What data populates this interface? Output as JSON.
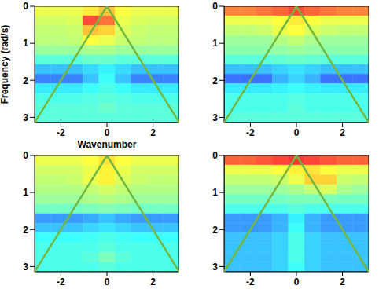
{
  "chart_data": [
    {
      "type": "heatmap",
      "x_label": "Wavenumber",
      "y_label": "Frequency (rad/s)",
      "xlim": [
        -3.14,
        3.14
      ],
      "xticks": [
        -2,
        0,
        2
      ],
      "ylim": [
        0,
        3.14
      ],
      "yticks": [
        0,
        1,
        2,
        3
      ],
      "x_edges": [
        -3.14,
        -2.442,
        -1.744,
        -1.047,
        -0.349,
        0.349,
        1.047,
        1.744,
        2.442,
        3.14
      ],
      "y_edges": [
        0,
        0.26,
        0.52,
        0.79,
        1.05,
        1.31,
        1.57,
        1.83,
        2.09,
        2.36,
        2.62,
        2.88,
        3.14
      ],
      "zlim": [
        0,
        1
      ],
      "z": [
        [
          0.6,
          0.6,
          0.6,
          0.65,
          0.7,
          0.62,
          0.6,
          0.6,
          0.6
        ],
        [
          0.57,
          0.57,
          0.58,
          0.85,
          0.8,
          0.6,
          0.58,
          0.57,
          0.57
        ],
        [
          0.55,
          0.55,
          0.56,
          0.7,
          0.68,
          0.58,
          0.56,
          0.55,
          0.55
        ],
        [
          0.54,
          0.54,
          0.55,
          0.62,
          0.6,
          0.56,
          0.55,
          0.54,
          0.54
        ],
        [
          0.5,
          0.5,
          0.5,
          0.52,
          0.52,
          0.5,
          0.5,
          0.5,
          0.5
        ],
        [
          0.42,
          0.42,
          0.42,
          0.44,
          0.44,
          0.42,
          0.42,
          0.42,
          0.42
        ],
        [
          0.3,
          0.3,
          0.3,
          0.33,
          0.36,
          0.33,
          0.3,
          0.3,
          0.3
        ],
        [
          0.22,
          0.22,
          0.22,
          0.3,
          0.38,
          0.3,
          0.22,
          0.22,
          0.22
        ],
        [
          0.35,
          0.35,
          0.35,
          0.38,
          0.4,
          0.38,
          0.35,
          0.35,
          0.35
        ],
        [
          0.4,
          0.4,
          0.4,
          0.41,
          0.42,
          0.41,
          0.4,
          0.4,
          0.4
        ],
        [
          0.42,
          0.42,
          0.42,
          0.42,
          0.44,
          0.42,
          0.42,
          0.42,
          0.42
        ],
        [
          0.42,
          0.42,
          0.42,
          0.42,
          0.42,
          0.42,
          0.42,
          0.42,
          0.42
        ]
      ],
      "lines": [
        {
          "x": [
            -3.14,
            0,
            3.14
          ],
          "y": [
            3.14,
            0,
            3.14
          ],
          "color": "#72b83e"
        }
      ]
    },
    {
      "type": "heatmap",
      "xlim": [
        -3.14,
        3.14
      ],
      "xticks": [
        -2,
        0,
        2
      ],
      "ylim": [
        0,
        3.14
      ],
      "yticks": [
        0,
        1,
        2,
        3
      ],
      "x_edges": [
        -3.14,
        -2.442,
        -1.744,
        -1.047,
        -0.349,
        0.349,
        1.047,
        1.744,
        2.442,
        3.14
      ],
      "y_edges": [
        0,
        0.26,
        0.52,
        0.79,
        1.05,
        1.31,
        1.57,
        1.83,
        2.09,
        2.36,
        2.62,
        2.88,
        3.14
      ],
      "zlim": [
        0,
        1
      ],
      "z": [
        [
          0.78,
          0.78,
          0.8,
          0.82,
          0.85,
          0.82,
          0.8,
          0.78,
          0.78
        ],
        [
          0.6,
          0.6,
          0.6,
          0.62,
          0.65,
          0.62,
          0.6,
          0.6,
          0.6
        ],
        [
          0.55,
          0.55,
          0.56,
          0.6,
          0.62,
          0.58,
          0.56,
          0.55,
          0.55
        ],
        [
          0.5,
          0.5,
          0.5,
          0.53,
          0.55,
          0.52,
          0.5,
          0.5,
          0.5
        ],
        [
          0.48,
          0.48,
          0.48,
          0.49,
          0.5,
          0.49,
          0.48,
          0.48,
          0.48
        ],
        [
          0.42,
          0.42,
          0.42,
          0.43,
          0.44,
          0.43,
          0.42,
          0.42,
          0.42
        ],
        [
          0.3,
          0.3,
          0.3,
          0.32,
          0.34,
          0.32,
          0.3,
          0.3,
          0.3
        ],
        [
          0.2,
          0.2,
          0.2,
          0.28,
          0.32,
          0.28,
          0.2,
          0.2,
          0.2
        ],
        [
          0.35,
          0.35,
          0.35,
          0.36,
          0.38,
          0.36,
          0.35,
          0.35,
          0.35
        ],
        [
          0.4,
          0.4,
          0.4,
          0.4,
          0.41,
          0.4,
          0.4,
          0.4,
          0.4
        ],
        [
          0.4,
          0.4,
          0.4,
          0.4,
          0.42,
          0.4,
          0.4,
          0.4,
          0.4
        ],
        [
          0.42,
          0.42,
          0.42,
          0.42,
          0.42,
          0.42,
          0.42,
          0.42,
          0.42
        ]
      ],
      "lines": [
        {
          "x": [
            -3.14,
            0,
            3.14
          ],
          "y": [
            3.14,
            0,
            3.14
          ],
          "color": "#72b83e"
        }
      ]
    },
    {
      "type": "heatmap",
      "xlim": [
        -3.14,
        3.14
      ],
      "xticks": [
        -2,
        0,
        2
      ],
      "ylim": [
        0,
        3.14
      ],
      "yticks": [
        0,
        1,
        2,
        3
      ],
      "x_edges": [
        -3.14,
        -2.442,
        -1.744,
        -1.047,
        -0.349,
        0.349,
        1.047,
        1.744,
        2.442,
        3.14
      ],
      "y_edges": [
        0,
        0.26,
        0.52,
        0.79,
        1.05,
        1.31,
        1.57,
        1.83,
        2.09,
        2.36,
        2.62,
        2.88,
        3.14
      ],
      "zlim": [
        0,
        1
      ],
      "z": [
        [
          0.6,
          0.6,
          0.6,
          0.62,
          0.66,
          0.62,
          0.6,
          0.6,
          0.6
        ],
        [
          0.57,
          0.57,
          0.57,
          0.6,
          0.64,
          0.6,
          0.57,
          0.57,
          0.57
        ],
        [
          0.55,
          0.55,
          0.56,
          0.6,
          0.64,
          0.58,
          0.56,
          0.55,
          0.55
        ],
        [
          0.53,
          0.53,
          0.53,
          0.55,
          0.57,
          0.55,
          0.53,
          0.53,
          0.53
        ],
        [
          0.5,
          0.5,
          0.5,
          0.52,
          0.53,
          0.52,
          0.5,
          0.5,
          0.5
        ],
        [
          0.45,
          0.45,
          0.45,
          0.46,
          0.47,
          0.46,
          0.45,
          0.45,
          0.45
        ],
        [
          0.25,
          0.25,
          0.25,
          0.27,
          0.3,
          0.27,
          0.25,
          0.25,
          0.25
        ],
        [
          0.3,
          0.3,
          0.3,
          0.32,
          0.34,
          0.32,
          0.3,
          0.3,
          0.3
        ],
        [
          0.38,
          0.38,
          0.38,
          0.39,
          0.4,
          0.39,
          0.38,
          0.38,
          0.38
        ],
        [
          0.4,
          0.4,
          0.4,
          0.4,
          0.42,
          0.4,
          0.4,
          0.4,
          0.4
        ],
        [
          0.4,
          0.4,
          0.4,
          0.42,
          0.46,
          0.42,
          0.4,
          0.4,
          0.4
        ],
        [
          0.4,
          0.4,
          0.4,
          0.4,
          0.42,
          0.4,
          0.4,
          0.4,
          0.4
        ]
      ],
      "lines": [
        {
          "x": [
            -3.14,
            0,
            3.14
          ],
          "y": [
            3.14,
            0,
            3.14
          ],
          "color": "#72b83e"
        }
      ]
    },
    {
      "type": "heatmap",
      "xlim": [
        -3.14,
        3.14
      ],
      "xticks": [
        -2,
        0,
        2
      ],
      "ylim": [
        0,
        3.14
      ],
      "yticks": [
        0,
        1,
        2,
        3
      ],
      "x_edges": [
        -3.14,
        -2.442,
        -1.744,
        -1.047,
        -0.349,
        0.349,
        1.047,
        1.744,
        2.442,
        3.14
      ],
      "y_edges": [
        0,
        0.26,
        0.52,
        0.79,
        1.05,
        1.31,
        1.57,
        1.83,
        2.09,
        2.36,
        2.62,
        2.88,
        3.14
      ],
      "zlim": [
        0,
        1
      ],
      "z": [
        [
          0.82,
          0.82,
          0.84,
          0.86,
          0.88,
          0.86,
          0.84,
          0.82,
          0.82
        ],
        [
          0.6,
          0.6,
          0.6,
          0.62,
          0.64,
          0.66,
          0.62,
          0.6,
          0.6
        ],
        [
          0.55,
          0.55,
          0.55,
          0.56,
          0.6,
          0.68,
          0.68,
          0.56,
          0.55
        ],
        [
          0.5,
          0.5,
          0.5,
          0.5,
          0.52,
          0.55,
          0.58,
          0.52,
          0.5
        ],
        [
          0.45,
          0.45,
          0.45,
          0.45,
          0.46,
          0.46,
          0.46,
          0.45,
          0.45
        ],
        [
          0.4,
          0.4,
          0.4,
          0.4,
          0.42,
          0.4,
          0.4,
          0.4,
          0.4
        ],
        [
          0.25,
          0.25,
          0.25,
          0.28,
          0.36,
          0.28,
          0.25,
          0.25,
          0.25
        ],
        [
          0.25,
          0.25,
          0.25,
          0.28,
          0.38,
          0.28,
          0.25,
          0.25,
          0.25
        ],
        [
          0.3,
          0.3,
          0.3,
          0.32,
          0.4,
          0.32,
          0.3,
          0.3,
          0.3
        ],
        [
          0.3,
          0.3,
          0.3,
          0.32,
          0.4,
          0.32,
          0.3,
          0.3,
          0.3
        ],
        [
          0.3,
          0.3,
          0.3,
          0.32,
          0.4,
          0.32,
          0.3,
          0.3,
          0.3
        ],
        [
          0.3,
          0.3,
          0.3,
          0.32,
          0.38,
          0.32,
          0.3,
          0.3,
          0.3
        ]
      ],
      "lines": [
        {
          "x": [
            -3.14,
            0,
            3.14
          ],
          "y": [
            3.14,
            0,
            3.14
          ],
          "color": "#72b83e"
        }
      ]
    }
  ]
}
